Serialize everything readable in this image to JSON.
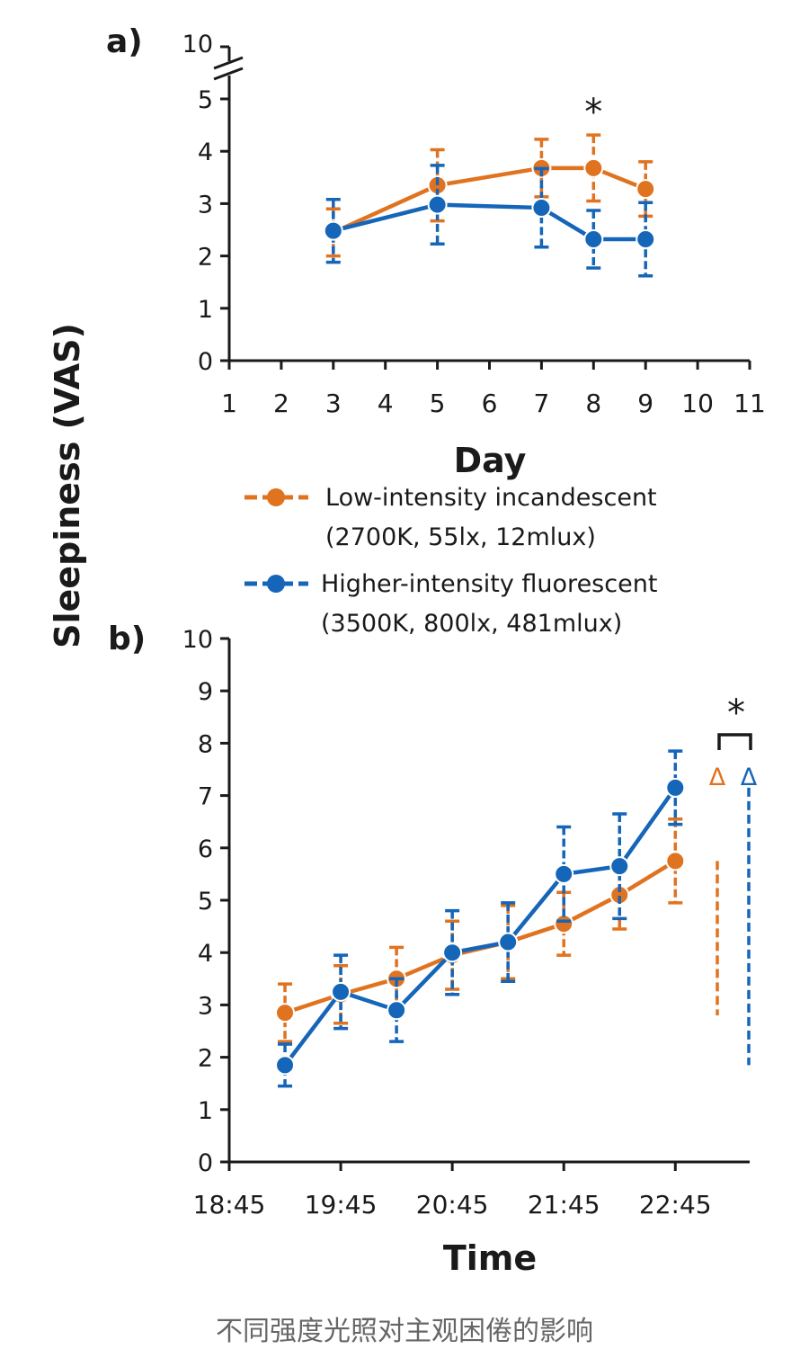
{
  "colors": {
    "incandescent": "#e07320",
    "fluorescent": "#1565b8",
    "axis": "#1a1a1a"
  },
  "y_axis_label": "Sleepiness (VAS)",
  "legend": [
    {
      "line1": "Low-intensity incandescent",
      "line2": "(2700K, 55lx, 12mlux)",
      "color": "#e07320"
    },
    {
      "line1": "Higher-intensity fluorescent",
      "line2": "(3500K, 800lx, 481mlux)",
      "color": "#1565b8"
    }
  ],
  "caption": "不同强度光照对主观困倦的影响",
  "chart_data": [
    {
      "panel_label": "a)",
      "type": "line",
      "xlabel": "Day",
      "ylabel": "Sleepiness (VAS)",
      "xlim": [
        1,
        11
      ],
      "ylim": [
        0,
        5
      ],
      "axis_break_top_label": "10",
      "x_ticks": [
        1,
        2,
        3,
        4,
        5,
        6,
        7,
        8,
        9,
        10,
        11
      ],
      "x_tick_labels": [
        "1",
        "2",
        "3",
        "4",
        "5",
        "6",
        "7",
        "8",
        "9",
        "10",
        "11"
      ],
      "y_ticks": [
        0,
        1,
        2,
        3,
        4,
        5
      ],
      "y_tick_labels": [
        "0",
        "1",
        "2",
        "3",
        "4",
        "5"
      ],
      "significance": [
        {
          "x": 8,
          "text": "*"
        }
      ],
      "series": [
        {
          "name": "Low-intensity incandescent",
          "color": "#e07320",
          "x": [
            3,
            5,
            7,
            8,
            9
          ],
          "y": [
            2.45,
            3.35,
            3.68,
            3.68,
            3.28
          ],
          "err": [
            0.45,
            0.68,
            0.55,
            0.63,
            0.52
          ]
        },
        {
          "name": "Higher-intensity fluorescent",
          "color": "#1565b8",
          "x": [
            3,
            5,
            7,
            8,
            9
          ],
          "y": [
            2.48,
            2.98,
            2.92,
            2.32,
            2.32
          ],
          "err": [
            0.6,
            0.75,
            0.75,
            0.55,
            0.7
          ]
        }
      ]
    },
    {
      "panel_label": "b)",
      "type": "line",
      "xlabel": "Time",
      "ylabel": "Sleepiness (VAS)",
      "xlim": [
        0,
        140
      ],
      "ylim": [
        0,
        10
      ],
      "x_ticks": [
        0,
        30,
        60,
        90,
        120
      ],
      "x_tick_labels": [
        "18:45",
        "19:45",
        "20:45",
        "21:45",
        "22:45"
      ],
      "y_ticks": [
        0,
        1,
        2,
        3,
        4,
        5,
        6,
        7,
        8,
        9,
        10
      ],
      "y_tick_labels": [
        "0",
        "1",
        "2",
        "3",
        "4",
        "5",
        "6",
        "7",
        "8",
        "9",
        "10"
      ],
      "delta_label": "Δ",
      "significance_text": "*",
      "deltas": [
        {
          "series": 0,
          "y_low": 2.8,
          "y_high": 5.75
        },
        {
          "series": 1,
          "y_low": 1.85,
          "y_high": 7.15
        }
      ],
      "series": [
        {
          "name": "Low-intensity incandescent",
          "color": "#e07320",
          "x": [
            15,
            30,
            45,
            60,
            75,
            90,
            105,
            120
          ],
          "y": [
            2.85,
            3.2,
            3.5,
            3.95,
            4.2,
            4.55,
            5.1,
            5.75
          ],
          "err": [
            0.55,
            0.55,
            0.6,
            0.65,
            0.7,
            0.6,
            0.65,
            0.8
          ]
        },
        {
          "name": "Higher-intensity fluorescent",
          "color": "#1565b8",
          "x": [
            15,
            30,
            45,
            60,
            75,
            90,
            105,
            120
          ],
          "y": [
            1.85,
            3.25,
            2.9,
            4.0,
            4.2,
            5.5,
            5.65,
            7.15
          ],
          "err": [
            0.4,
            0.7,
            0.6,
            0.8,
            0.75,
            0.9,
            1.0,
            0.7
          ]
        }
      ]
    }
  ]
}
